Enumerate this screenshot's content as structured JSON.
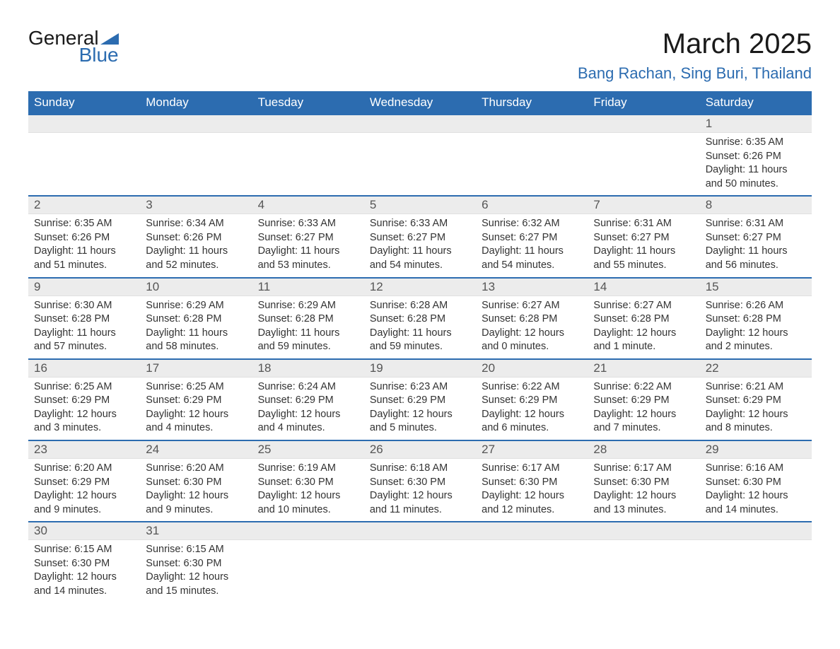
{
  "logo": {
    "word1": "General",
    "word2": "Blue",
    "triangle_color": "#2c6cb0"
  },
  "title": "March 2025",
  "location": "Bang Rachan, Sing Buri, Thailand",
  "colors": {
    "header_bg": "#2c6cb0",
    "header_text": "#ffffff",
    "daynum_bg": "#ececec",
    "daynum_text": "#555555",
    "body_text": "#333333",
    "rule": "#2c6cb0"
  },
  "day_names": [
    "Sunday",
    "Monday",
    "Tuesday",
    "Wednesday",
    "Thursday",
    "Friday",
    "Saturday"
  ],
  "weeks": [
    [
      null,
      null,
      null,
      null,
      null,
      null,
      {
        "n": "1",
        "sunrise": "6:35 AM",
        "sunset": "6:26 PM",
        "daylight": "11 hours and 50 minutes."
      }
    ],
    [
      {
        "n": "2",
        "sunrise": "6:35 AM",
        "sunset": "6:26 PM",
        "daylight": "11 hours and 51 minutes."
      },
      {
        "n": "3",
        "sunrise": "6:34 AM",
        "sunset": "6:26 PM",
        "daylight": "11 hours and 52 minutes."
      },
      {
        "n": "4",
        "sunrise": "6:33 AM",
        "sunset": "6:27 PM",
        "daylight": "11 hours and 53 minutes."
      },
      {
        "n": "5",
        "sunrise": "6:33 AM",
        "sunset": "6:27 PM",
        "daylight": "11 hours and 54 minutes."
      },
      {
        "n": "6",
        "sunrise": "6:32 AM",
        "sunset": "6:27 PM",
        "daylight": "11 hours and 54 minutes."
      },
      {
        "n": "7",
        "sunrise": "6:31 AM",
        "sunset": "6:27 PM",
        "daylight": "11 hours and 55 minutes."
      },
      {
        "n": "8",
        "sunrise": "6:31 AM",
        "sunset": "6:27 PM",
        "daylight": "11 hours and 56 minutes."
      }
    ],
    [
      {
        "n": "9",
        "sunrise": "6:30 AM",
        "sunset": "6:28 PM",
        "daylight": "11 hours and 57 minutes."
      },
      {
        "n": "10",
        "sunrise": "6:29 AM",
        "sunset": "6:28 PM",
        "daylight": "11 hours and 58 minutes."
      },
      {
        "n": "11",
        "sunrise": "6:29 AM",
        "sunset": "6:28 PM",
        "daylight": "11 hours and 59 minutes."
      },
      {
        "n": "12",
        "sunrise": "6:28 AM",
        "sunset": "6:28 PM",
        "daylight": "11 hours and 59 minutes."
      },
      {
        "n": "13",
        "sunrise": "6:27 AM",
        "sunset": "6:28 PM",
        "daylight": "12 hours and 0 minutes."
      },
      {
        "n": "14",
        "sunrise": "6:27 AM",
        "sunset": "6:28 PM",
        "daylight": "12 hours and 1 minute."
      },
      {
        "n": "15",
        "sunrise": "6:26 AM",
        "sunset": "6:28 PM",
        "daylight": "12 hours and 2 minutes."
      }
    ],
    [
      {
        "n": "16",
        "sunrise": "6:25 AM",
        "sunset": "6:29 PM",
        "daylight": "12 hours and 3 minutes."
      },
      {
        "n": "17",
        "sunrise": "6:25 AM",
        "sunset": "6:29 PM",
        "daylight": "12 hours and 4 minutes."
      },
      {
        "n": "18",
        "sunrise": "6:24 AM",
        "sunset": "6:29 PM",
        "daylight": "12 hours and 4 minutes."
      },
      {
        "n": "19",
        "sunrise": "6:23 AM",
        "sunset": "6:29 PM",
        "daylight": "12 hours and 5 minutes."
      },
      {
        "n": "20",
        "sunrise": "6:22 AM",
        "sunset": "6:29 PM",
        "daylight": "12 hours and 6 minutes."
      },
      {
        "n": "21",
        "sunrise": "6:22 AM",
        "sunset": "6:29 PM",
        "daylight": "12 hours and 7 minutes."
      },
      {
        "n": "22",
        "sunrise": "6:21 AM",
        "sunset": "6:29 PM",
        "daylight": "12 hours and 8 minutes."
      }
    ],
    [
      {
        "n": "23",
        "sunrise": "6:20 AM",
        "sunset": "6:29 PM",
        "daylight": "12 hours and 9 minutes."
      },
      {
        "n": "24",
        "sunrise": "6:20 AM",
        "sunset": "6:30 PM",
        "daylight": "12 hours and 9 minutes."
      },
      {
        "n": "25",
        "sunrise": "6:19 AM",
        "sunset": "6:30 PM",
        "daylight": "12 hours and 10 minutes."
      },
      {
        "n": "26",
        "sunrise": "6:18 AM",
        "sunset": "6:30 PM",
        "daylight": "12 hours and 11 minutes."
      },
      {
        "n": "27",
        "sunrise": "6:17 AM",
        "sunset": "6:30 PM",
        "daylight": "12 hours and 12 minutes."
      },
      {
        "n": "28",
        "sunrise": "6:17 AM",
        "sunset": "6:30 PM",
        "daylight": "12 hours and 13 minutes."
      },
      {
        "n": "29",
        "sunrise": "6:16 AM",
        "sunset": "6:30 PM",
        "daylight": "12 hours and 14 minutes."
      }
    ],
    [
      {
        "n": "30",
        "sunrise": "6:15 AM",
        "sunset": "6:30 PM",
        "daylight": "12 hours and 14 minutes."
      },
      {
        "n": "31",
        "sunrise": "6:15 AM",
        "sunset": "6:30 PM",
        "daylight": "12 hours and 15 minutes."
      },
      null,
      null,
      null,
      null,
      null
    ]
  ],
  "labels": {
    "sunrise": "Sunrise:",
    "sunset": "Sunset:",
    "daylight": "Daylight:"
  }
}
